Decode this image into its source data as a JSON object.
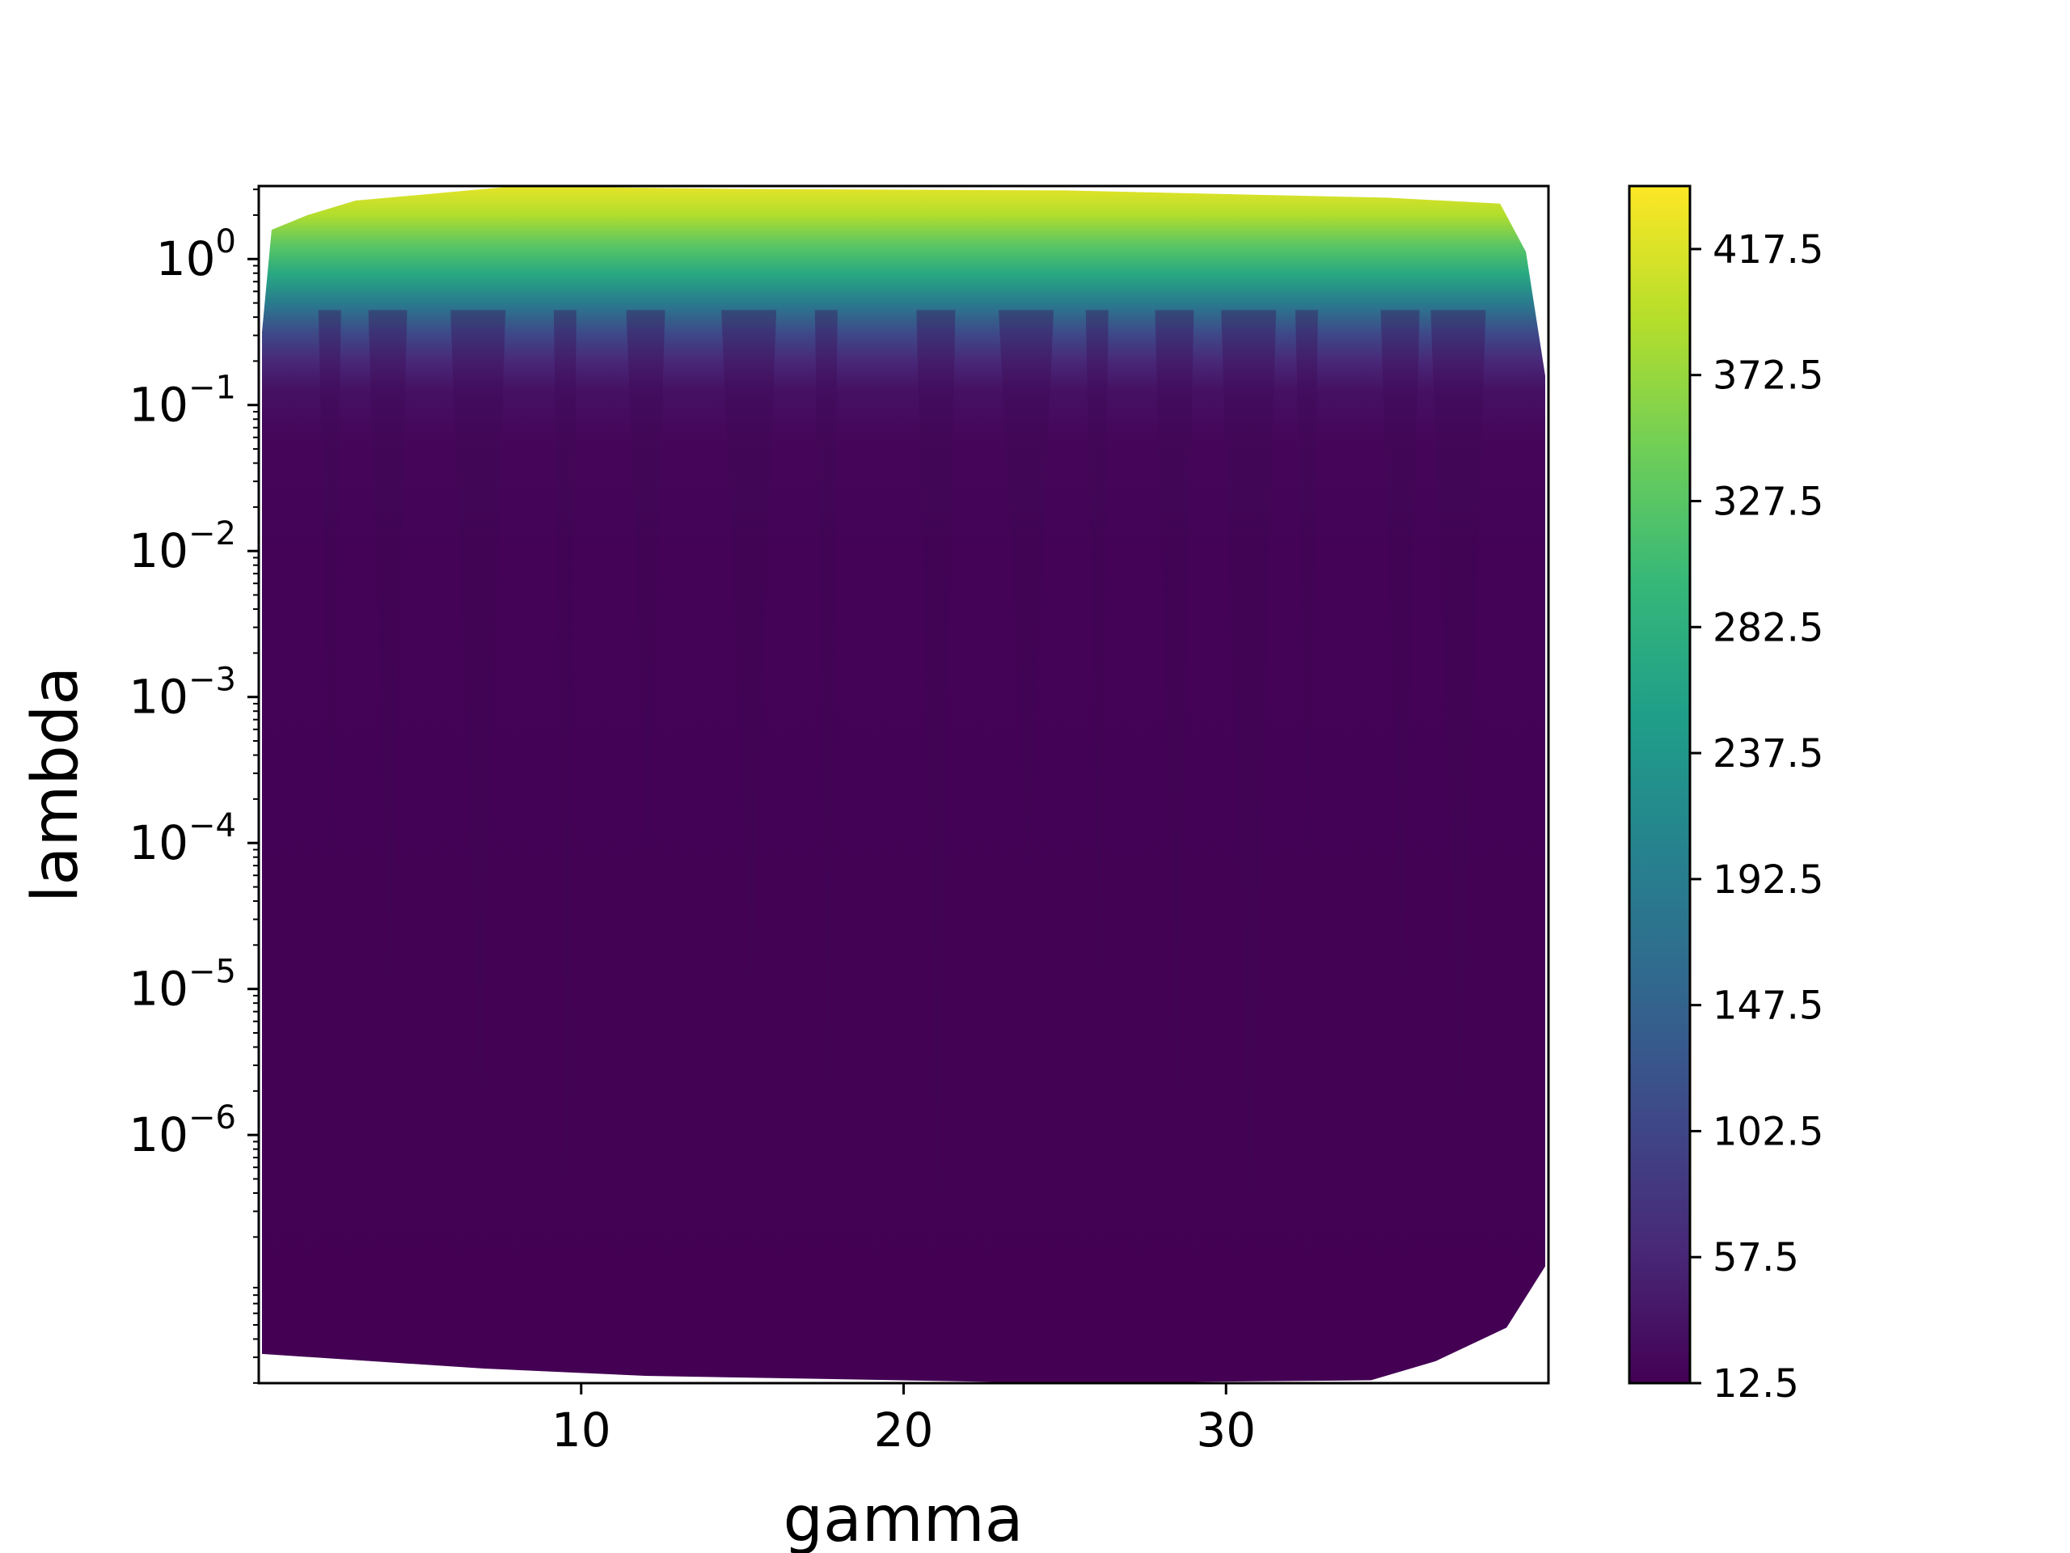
{
  "chart_data": {
    "type": "heatmap",
    "subtype": "filled-contour",
    "title": "",
    "xlabel": "gamma",
    "ylabel": "lambda",
    "xlim": [
      0,
      40
    ],
    "x_ticks": [
      10,
      20,
      30
    ],
    "x_tick_labels": [
      "10",
      "20",
      "30"
    ],
    "y_scale": "log",
    "ylim_exponent": [
      -7.7,
      0.5
    ],
    "y_ticks_exponent": [
      0,
      -1,
      -2,
      -3,
      -4,
      -5,
      -6
    ],
    "y_tick_labels": [
      {
        "base": "10",
        "exp": "0"
      },
      {
        "base": "10",
        "exp": "−1"
      },
      {
        "base": "10",
        "exp": "−2"
      },
      {
        "base": "10",
        "exp": "−3"
      },
      {
        "base": "10",
        "exp": "−4"
      },
      {
        "base": "10",
        "exp": "−5"
      },
      {
        "base": "10",
        "exp": "−6"
      }
    ],
    "colorbar": {
      "colormap": "viridis",
      "range": [
        12.5,
        440
      ],
      "ticks": [
        12.5,
        57.5,
        102.5,
        147.5,
        192.5,
        237.5,
        282.5,
        327.5,
        372.5,
        417.5
      ],
      "tick_labels": [
        "12.5",
        "57.5",
        "102.5",
        "147.5",
        "192.5",
        "237.5",
        "282.5",
        "327.5",
        "372.5",
        "417.5"
      ]
    },
    "data_extent": {
      "gamma_range": [
        0.1,
        39.9
      ],
      "top_boundary": [
        [
          0.1,
          -0.5
        ],
        [
          0.4,
          0.2
        ],
        [
          1.5,
          0.3
        ],
        [
          3,
          0.4
        ],
        [
          8,
          0.5
        ],
        [
          15,
          0.48
        ],
        [
          25,
          0.47
        ],
        [
          35,
          0.42
        ],
        [
          38.5,
          0.38
        ],
        [
          39.3,
          0.05
        ],
        [
          39.9,
          -0.8
        ]
      ],
      "bottom_boundary": [
        [
          0.1,
          -7.5
        ],
        [
          7,
          -7.6
        ],
        [
          12,
          -7.65
        ],
        [
          25,
          -7.7
        ],
        [
          34.5,
          -7.68
        ],
        [
          36.5,
          -7.55
        ],
        [
          38.7,
          -7.32
        ],
        [
          39.9,
          -6.9
        ]
      ]
    },
    "color_profile_by_log_lambda": [
      [
        0.5,
        425
      ],
      [
        0.3,
        390
      ],
      [
        0.1,
        330
      ],
      [
        -0.1,
        270
      ],
      [
        -0.3,
        190
      ],
      [
        -0.5,
        110
      ],
      [
        -0.7,
        60
      ],
      [
        -0.9,
        32
      ],
      [
        -1.2,
        20
      ],
      [
        -2,
        15
      ],
      [
        -7.7,
        13
      ]
    ],
    "palette": {
      "viridis": [
        "#440154",
        "#482878",
        "#3e4989",
        "#31688e",
        "#26828e",
        "#1f9e89",
        "#35b779",
        "#6ece58",
        "#b5de2b",
        "#fde725"
      ]
    }
  }
}
